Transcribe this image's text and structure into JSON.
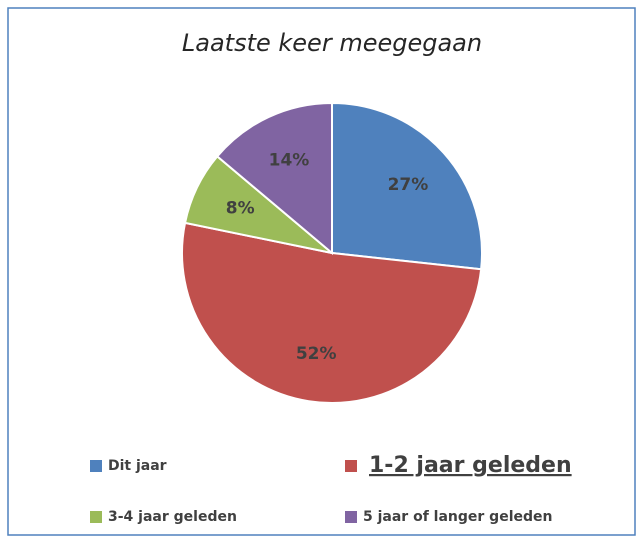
{
  "chart_data": {
    "type": "pie",
    "title": "Laatste keer meegegaan",
    "categories": [
      "Dit jaar",
      "1-2 jaar geleden",
      "3-4 jaar geleden",
      "5 jaar of langer geleden"
    ],
    "values": [
      27,
      52,
      8,
      14
    ],
    "value_labels": [
      "27%",
      "52%",
      "8%",
      "14%"
    ],
    "colors": [
      "#4f81bd",
      "#c0504d",
      "#9bbb59",
      "#8064a2"
    ],
    "legend": "bottom"
  }
}
